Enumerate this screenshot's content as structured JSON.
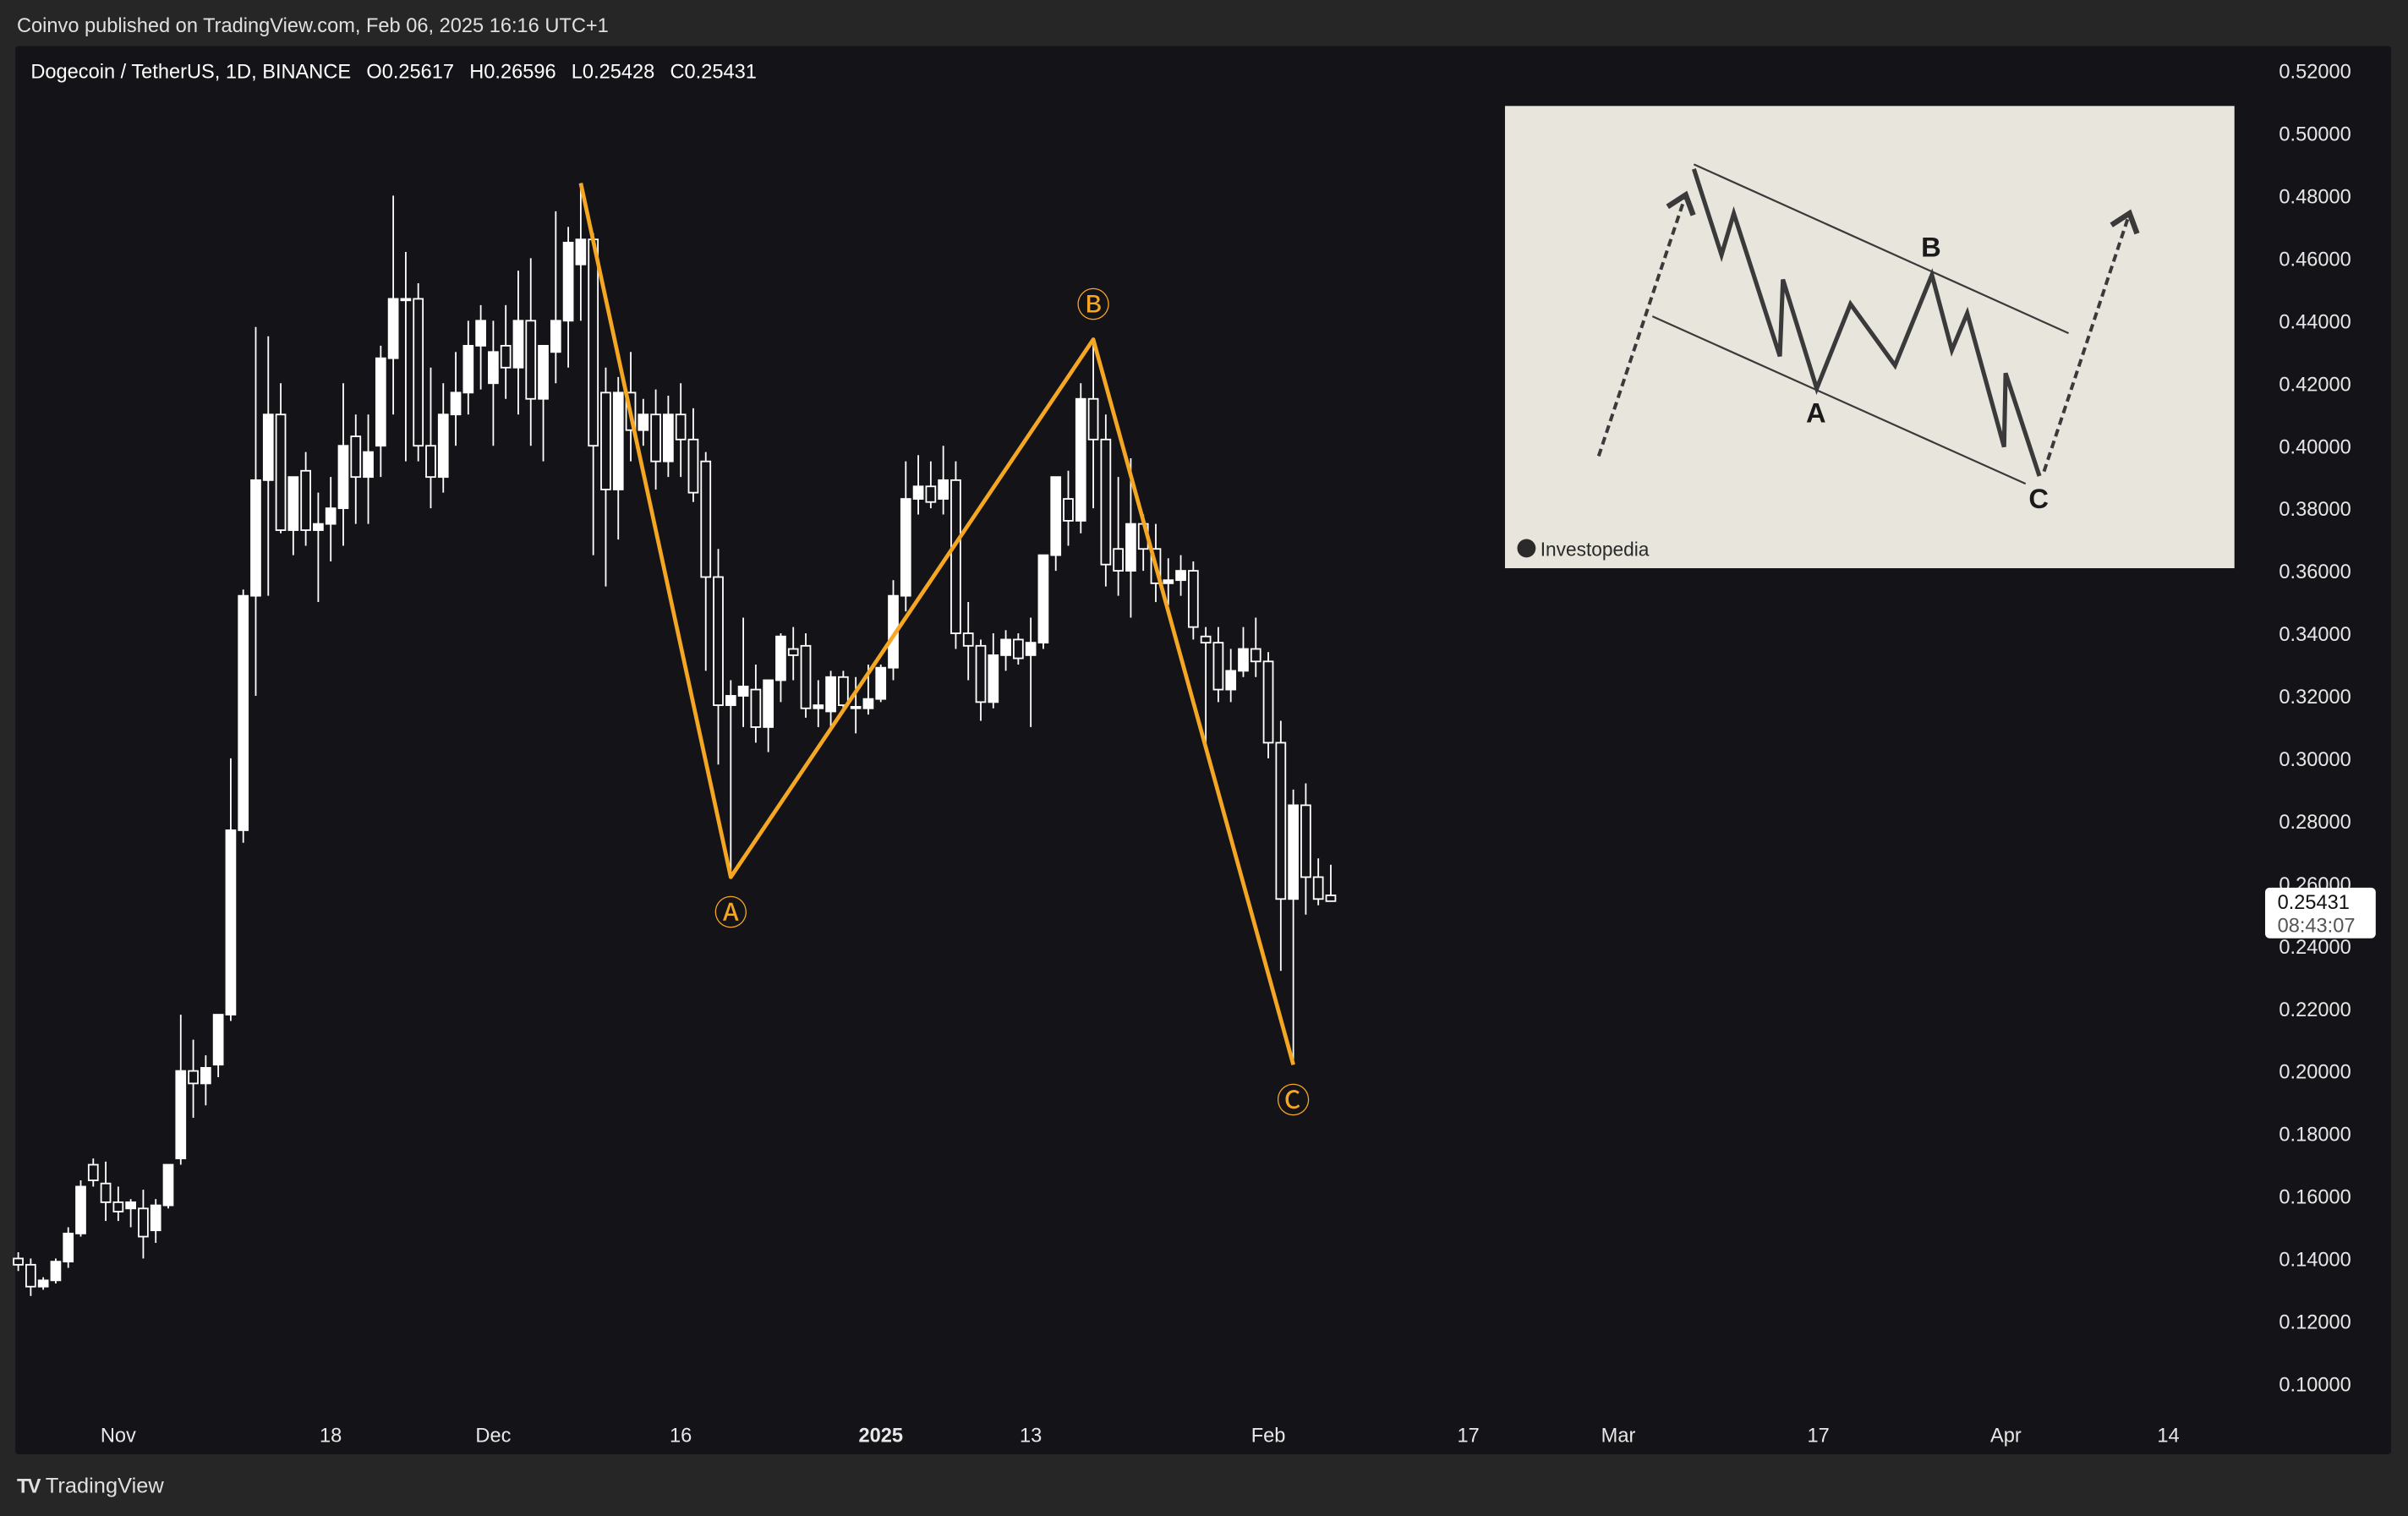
{
  "header": {
    "published": "Coinvo published on TradingView.com, Feb 06, 2025 16:16 UTC+1"
  },
  "legend": {
    "symbol": "Dogecoin / TetherUS, 1D, BINANCE",
    "open": "O0.25617",
    "high": "H0.26596",
    "low": "L0.25428",
    "close": "C0.25431"
  },
  "last_price": {
    "price": "0.25431",
    "countdown": "08:43:07"
  },
  "footer": {
    "brand": "TradingView",
    "logo_icon": "tradingview-logo-icon"
  },
  "colors": {
    "wave": "#f5a623",
    "candle": "#ffffff",
    "background": "#141418"
  },
  "inset": {
    "labels": [
      "A",
      "B",
      "C"
    ],
    "brand": "Investopedia"
  },
  "chart_data": {
    "type": "candlestick",
    "title": "Dogecoin / TetherUS, 1D, BINANCE",
    "start_date": "2024-10-24",
    "interval": "1D",
    "ylim": [
      0.09,
      0.525
    ],
    "y_ticks": [
      "0.52000",
      "0.50000",
      "0.48000",
      "0.46000",
      "0.44000",
      "0.42000",
      "0.40000",
      "0.38000",
      "0.36000",
      "0.34000",
      "0.32000",
      "0.30000",
      "0.28000",
      "0.26000",
      "0.24000",
      "0.22000",
      "0.20000",
      "0.18000",
      "0.16000",
      "0.14000",
      "0.12000",
      "0.10000"
    ],
    "x_ticks": [
      {
        "label": "Nov",
        "date": "2024-11-01",
        "bold": false
      },
      {
        "label": "18",
        "date": "2024-11-18",
        "bold": false
      },
      {
        "label": "Dec",
        "date": "2024-12-01",
        "bold": false
      },
      {
        "label": "16",
        "date": "2024-12-16",
        "bold": false
      },
      {
        "label": "2025",
        "date": "2025-01-01",
        "bold": true
      },
      {
        "label": "13",
        "date": "2025-01-13",
        "bold": false
      },
      {
        "label": "Feb",
        "date": "2025-02-01",
        "bold": false
      },
      {
        "label": "17",
        "date": "2025-02-17",
        "bold": false
      },
      {
        "label": "Mar",
        "date": "2025-03-01",
        "bold": false
      },
      {
        "label": "17",
        "date": "2025-03-17",
        "bold": false
      },
      {
        "label": "Apr",
        "date": "2025-04-01",
        "bold": false
      },
      {
        "label": "14",
        "date": "2025-04-14",
        "bold": false
      }
    ],
    "ohlc": [
      [
        0.14,
        0.142,
        0.136,
        0.138
      ],
      [
        0.138,
        0.14,
        0.128,
        0.131
      ],
      [
        0.131,
        0.134,
        0.13,
        0.133
      ],
      [
        0.133,
        0.14,
        0.132,
        0.139
      ],
      [
        0.139,
        0.15,
        0.137,
        0.148
      ],
      [
        0.148,
        0.165,
        0.147,
        0.163
      ],
      [
        0.17,
        0.172,
        0.163,
        0.165
      ],
      [
        0.164,
        0.171,
        0.152,
        0.158
      ],
      [
        0.158,
        0.163,
        0.152,
        0.155
      ],
      [
        0.156,
        0.159,
        0.15,
        0.158
      ],
      [
        0.156,
        0.162,
        0.14,
        0.147
      ],
      [
        0.149,
        0.159,
        0.145,
        0.157
      ],
      [
        0.157,
        0.17,
        0.156,
        0.17
      ],
      [
        0.172,
        0.218,
        0.17,
        0.2
      ],
      [
        0.2,
        0.21,
        0.185,
        0.196
      ],
      [
        0.196,
        0.205,
        0.189,
        0.201
      ],
      [
        0.202,
        0.215,
        0.198,
        0.218
      ],
      [
        0.218,
        0.3,
        0.216,
        0.277
      ],
      [
        0.277,
        0.354,
        0.273,
        0.352
      ],
      [
        0.352,
        0.438,
        0.32,
        0.389
      ],
      [
        0.389,
        0.435,
        0.352,
        0.41
      ],
      [
        0.41,
        0.42,
        0.372,
        0.373
      ],
      [
        0.373,
        0.39,
        0.365,
        0.39
      ],
      [
        0.392,
        0.398,
        0.368,
        0.373
      ],
      [
        0.373,
        0.385,
        0.35,
        0.375
      ],
      [
        0.375,
        0.39,
        0.363,
        0.38
      ],
      [
        0.38,
        0.42,
        0.368,
        0.4
      ],
      [
        0.403,
        0.41,
        0.375,
        0.39
      ],
      [
        0.39,
        0.41,
        0.375,
        0.398
      ],
      [
        0.4,
        0.432,
        0.39,
        0.428
      ],
      [
        0.428,
        0.48,
        0.41,
        0.447
      ],
      [
        0.447,
        0.462,
        0.395,
        0.447
      ],
      [
        0.447,
        0.452,
        0.395,
        0.4
      ],
      [
        0.4,
        0.425,
        0.38,
        0.39
      ],
      [
        0.39,
        0.42,
        0.385,
        0.41
      ],
      [
        0.41,
        0.43,
        0.4,
        0.417
      ],
      [
        0.417,
        0.44,
        0.41,
        0.432
      ],
      [
        0.432,
        0.445,
        0.418,
        0.44
      ],
      [
        0.42,
        0.44,
        0.4,
        0.43
      ],
      [
        0.432,
        0.445,
        0.415,
        0.425
      ],
      [
        0.425,
        0.456,
        0.41,
        0.44
      ],
      [
        0.44,
        0.46,
        0.4,
        0.415
      ],
      [
        0.415,
        0.43,
        0.395,
        0.432
      ],
      [
        0.43,
        0.475,
        0.42,
        0.44
      ],
      [
        0.44,
        0.47,
        0.425,
        0.465
      ],
      [
        0.458,
        0.484,
        0.44,
        0.466
      ],
      [
        0.466,
        0.468,
        0.365,
        0.4
      ],
      [
        0.417,
        0.425,
        0.355,
        0.386
      ],
      [
        0.386,
        0.422,
        0.37,
        0.417
      ],
      [
        0.417,
        0.43,
        0.395,
        0.405
      ],
      [
        0.405,
        0.415,
        0.4,
        0.41
      ],
      [
        0.41,
        0.418,
        0.386,
        0.395
      ],
      [
        0.395,
        0.416,
        0.39,
        0.41
      ],
      [
        0.41,
        0.42,
        0.39,
        0.402
      ],
      [
        0.402,
        0.412,
        0.382,
        0.385
      ],
      [
        0.395,
        0.398,
        0.328,
        0.358
      ],
      [
        0.358,
        0.367,
        0.298,
        0.317
      ],
      [
        0.317,
        0.325,
        0.262,
        0.32
      ],
      [
        0.32,
        0.345,
        0.31,
        0.323
      ],
      [
        0.322,
        0.33,
        0.305,
        0.31
      ],
      [
        0.31,
        0.325,
        0.302,
        0.325
      ],
      [
        0.325,
        0.34,
        0.318,
        0.339
      ],
      [
        0.335,
        0.342,
        0.325,
        0.333
      ],
      [
        0.336,
        0.34,
        0.313,
        0.316
      ],
      [
        0.316,
        0.325,
        0.31,
        0.317
      ],
      [
        0.315,
        0.328,
        0.31,
        0.326
      ],
      [
        0.326,
        0.328,
        0.315,
        0.317
      ],
      [
        0.316,
        0.326,
        0.308,
        0.3165
      ],
      [
        0.316,
        0.33,
        0.314,
        0.319
      ],
      [
        0.319,
        0.33,
        0.318,
        0.329
      ],
      [
        0.329,
        0.357,
        0.325,
        0.352
      ],
      [
        0.352,
        0.395,
        0.347,
        0.383
      ],
      [
        0.383,
        0.397,
        0.378,
        0.387
      ],
      [
        0.387,
        0.395,
        0.38,
        0.382
      ],
      [
        0.383,
        0.4,
        0.378,
        0.389
      ],
      [
        0.389,
        0.395,
        0.335,
        0.34
      ],
      [
        0.34,
        0.35,
        0.325,
        0.336
      ],
      [
        0.336,
        0.338,
        0.312,
        0.318
      ],
      [
        0.318,
        0.34,
        0.316,
        0.333
      ],
      [
        0.333,
        0.341,
        0.328,
        0.338
      ],
      [
        0.338,
        0.34,
        0.33,
        0.332
      ],
      [
        0.333,
        0.345,
        0.31,
        0.337
      ],
      [
        0.337,
        0.365,
        0.335,
        0.365
      ],
      [
        0.365,
        0.39,
        0.36,
        0.39
      ],
      [
        0.383,
        0.392,
        0.368,
        0.376
      ],
      [
        0.376,
        0.42,
        0.372,
        0.415
      ],
      [
        0.415,
        0.434,
        0.38,
        0.402
      ],
      [
        0.402,
        0.41,
        0.355,
        0.362
      ],
      [
        0.367,
        0.39,
        0.352,
        0.36
      ],
      [
        0.36,
        0.396,
        0.345,
        0.375
      ],
      [
        0.375,
        0.378,
        0.36,
        0.367
      ],
      [
        0.367,
        0.375,
        0.35,
        0.356
      ],
      [
        0.356,
        0.364,
        0.349,
        0.357
      ],
      [
        0.357,
        0.365,
        0.352,
        0.36
      ],
      [
        0.36,
        0.363,
        0.338,
        0.342
      ],
      [
        0.339,
        0.342,
        0.305,
        0.337
      ],
      [
        0.337,
        0.342,
        0.318,
        0.322
      ],
      [
        0.322,
        0.335,
        0.318,
        0.328
      ],
      [
        0.328,
        0.342,
        0.326,
        0.335
      ],
      [
        0.335,
        0.345,
        0.326,
        0.331
      ],
      [
        0.331,
        0.334,
        0.3,
        0.305
      ],
      [
        0.305,
        0.312,
        0.232,
        0.255
      ],
      [
        0.255,
        0.29,
        0.202,
        0.285
      ],
      [
        0.285,
        0.292,
        0.25,
        0.262
      ],
      [
        0.262,
        0.268,
        0.253,
        0.255
      ],
      [
        0.25617,
        0.26596,
        0.25428,
        0.25431
      ]
    ],
    "annotations": {
      "wave_points": [
        {
          "date": "2024-12-08",
          "price": 0.484,
          "label": ""
        },
        {
          "date": "2024-12-20",
          "price": 0.262,
          "label": "Ⓐ"
        },
        {
          "date": "2025-01-18",
          "price": 0.434,
          "label": "Ⓑ"
        },
        {
          "date": "2025-02-03",
          "price": 0.202,
          "label": "Ⓒ"
        }
      ]
    }
  }
}
